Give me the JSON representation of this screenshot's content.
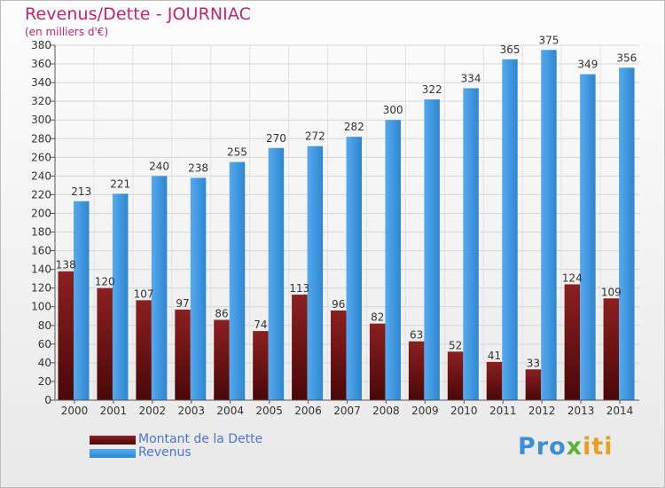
{
  "title": "Revenus/Dette - JOURNIAC",
  "subtitle": "(en milliers d'€)",
  "colors": {
    "title": "#c0266e",
    "dette": "#7a1a1a",
    "revenus": "#3d97dd"
  },
  "logo": {
    "text": "Proxiti",
    "part1": "Pro",
    "part2": "x",
    "part3": "iti"
  },
  "legend": {
    "dette_label": "Montant de la Dette",
    "revenus_label": "Revenus"
  },
  "chart_data": {
    "type": "bar",
    "title": "Revenus/Dette - JOURNIAC",
    "subtitle": "(en milliers d'€)",
    "categories": [
      "2000",
      "2001",
      "2002",
      "2003",
      "2004",
      "2005",
      "2006",
      "2007",
      "2008",
      "2009",
      "2010",
      "2011",
      "2012",
      "2013",
      "2014"
    ],
    "series": [
      {
        "name": "Montant de la Dette",
        "values": [
          138,
          120,
          107,
          97,
          86,
          74,
          113,
          96,
          82,
          63,
          52,
          41,
          33,
          124,
          109
        ]
      },
      {
        "name": "Revenus",
        "values": [
          213,
          221,
          240,
          238,
          255,
          270,
          272,
          282,
          300,
          322,
          334,
          365,
          375,
          349,
          356
        ]
      }
    ],
    "ylim": [
      0,
      380
    ],
    "yticks": [
      0,
      20,
      40,
      60,
      80,
      100,
      120,
      140,
      160,
      180,
      200,
      220,
      240,
      260,
      280,
      300,
      320,
      340,
      360,
      380
    ],
    "grid": true,
    "legend_position": "bottom-left"
  }
}
